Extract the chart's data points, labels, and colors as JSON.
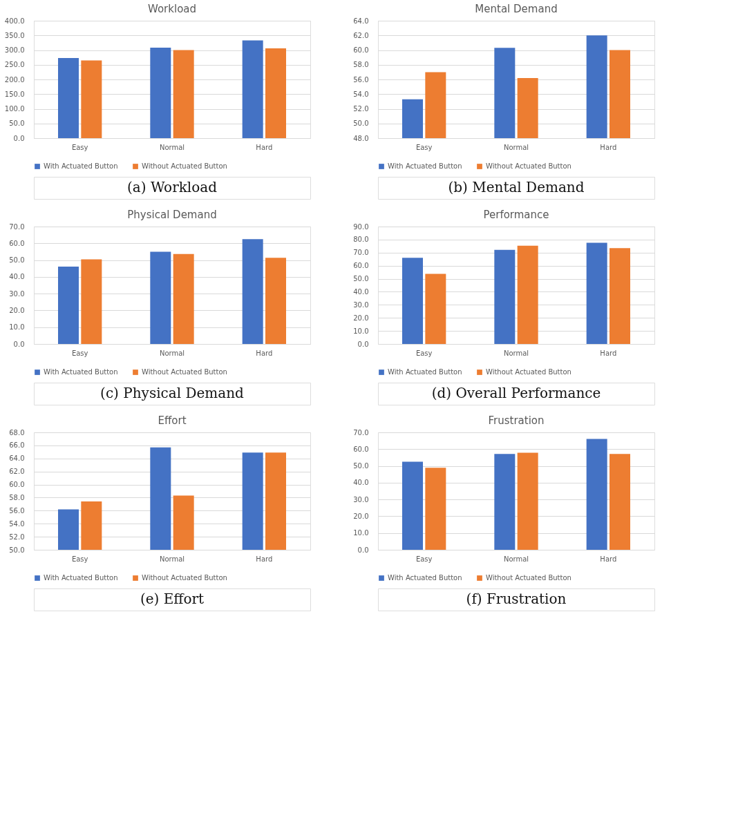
{
  "chart_data": [
    {
      "type": "bar",
      "title": "Workload",
      "categories": [
        "Easy",
        "Normal",
        "Hard"
      ],
      "series": [
        {
          "name": "With Actuated Button",
          "color": "#4472c4",
          "values": [
            273,
            308,
            333
          ]
        },
        {
          "name": "Without Actuated Button",
          "color": "#ed7d31",
          "values": [
            265,
            300,
            306
          ]
        }
      ],
      "ylim": [
        0,
        400
      ],
      "yticks": [
        {
          "value": 0,
          "label": "0.0"
        },
        {
          "value": 50,
          "label": "50.0"
        },
        {
          "value": 100,
          "label": "100.0"
        },
        {
          "value": 150,
          "label": "150.0"
        },
        {
          "value": 200,
          "label": "200.0"
        },
        {
          "value": 250,
          "label": "250.0"
        },
        {
          "value": 300,
          "label": "300.0"
        },
        {
          "value": 350,
          "label": "350.0"
        },
        {
          "value": 400,
          "label": "400.0"
        }
      ],
      "grid": "y",
      "legend": "bottom",
      "annotations": [
        "(a)  Workload"
      ]
    },
    {
      "type": "bar",
      "title": "Mental Demand",
      "categories": [
        "Easy",
        "Normal",
        "Hard"
      ],
      "series": [
        {
          "name": "With Actuated Button",
          "color": "#4472c4",
          "values": [
            53.3,
            60.3,
            62.0
          ]
        },
        {
          "name": "Without Actuated Button",
          "color": "#ed7d31",
          "values": [
            57.0,
            56.2,
            60.0
          ]
        }
      ],
      "ylim": [
        48,
        64
      ],
      "yticks": [
        {
          "value": 48,
          "label": "48.0"
        },
        {
          "value": 50,
          "label": "50.0"
        },
        {
          "value": 52,
          "label": "52.0"
        },
        {
          "value": 54,
          "label": "54.0"
        },
        {
          "value": 56,
          "label": "56.0"
        },
        {
          "value": 58,
          "label": "58.0"
        },
        {
          "value": 60,
          "label": "60.0"
        },
        {
          "value": 62,
          "label": "62.0"
        },
        {
          "value": 64,
          "label": "64.0"
        }
      ],
      "grid": "y",
      "legend": "bottom",
      "annotations": [
        "(b)  Mental Demand"
      ]
    },
    {
      "type": "bar",
      "title": "Physical Demand",
      "categories": [
        "Easy",
        "Normal",
        "Hard"
      ],
      "series": [
        {
          "name": "With Actuated Button",
          "color": "#4472c4",
          "values": [
            46.1,
            55.0,
            62.5
          ]
        },
        {
          "name": "Without Actuated Button",
          "color": "#ed7d31",
          "values": [
            50.4,
            53.6,
            51.4
          ]
        }
      ],
      "ylim": [
        0,
        70
      ],
      "yticks": [
        {
          "value": 0,
          "label": "0.0"
        },
        {
          "value": 10,
          "label": "10.0"
        },
        {
          "value": 20,
          "label": "20.0"
        },
        {
          "value": 30,
          "label": "30.0"
        },
        {
          "value": 40,
          "label": "40.0"
        },
        {
          "value": 50,
          "label": "50.0"
        },
        {
          "value": 60,
          "label": "60.0"
        },
        {
          "value": 70,
          "label": "70.0"
        }
      ],
      "grid": "y",
      "legend": "bottom",
      "annotations": [
        "(c)  Physical Demand"
      ]
    },
    {
      "type": "bar",
      "title": "Performance",
      "categories": [
        "Easy",
        "Normal",
        "Hard"
      ],
      "series": [
        {
          "name": "With Actuated Button",
          "color": "#4472c4",
          "values": [
            66.1,
            72.1,
            77.6
          ]
        },
        {
          "name": "Without Actuated Button",
          "color": "#ed7d31",
          "values": [
            53.7,
            75.3,
            73.5
          ]
        }
      ],
      "ylim": [
        0,
        90
      ],
      "yticks": [
        {
          "value": 0,
          "label": "0.0"
        },
        {
          "value": 10,
          "label": "10.0"
        },
        {
          "value": 20,
          "label": "20.0"
        },
        {
          "value": 30,
          "label": "30.0"
        },
        {
          "value": 40,
          "label": "40.0"
        },
        {
          "value": 50,
          "label": "50.0"
        },
        {
          "value": 60,
          "label": "60.0"
        },
        {
          "value": 70,
          "label": "70.0"
        },
        {
          "value": 80,
          "label": "80.0"
        },
        {
          "value": 90,
          "label": "90.0"
        }
      ],
      "grid": "y",
      "legend": "bottom",
      "annotations": [
        "(d)  Overall Performance"
      ]
    },
    {
      "type": "bar",
      "title": "Effort",
      "categories": [
        "Easy",
        "Normal",
        "Hard"
      ],
      "series": [
        {
          "name": "With Actuated Button",
          "color": "#4472c4",
          "values": [
            56.2,
            65.7,
            64.9
          ]
        },
        {
          "name": "Without Actuated Button",
          "color": "#ed7d31",
          "values": [
            57.4,
            58.3,
            64.9
          ]
        }
      ],
      "ylim": [
        50,
        68
      ],
      "yticks": [
        {
          "value": 50,
          "label": "50.0"
        },
        {
          "value": 52,
          "label": "52.0"
        },
        {
          "value": 54,
          "label": "54.0"
        },
        {
          "value": 56,
          "label": "56.0"
        },
        {
          "value": 58,
          "label": "58.0"
        },
        {
          "value": 60,
          "label": "60.0"
        },
        {
          "value": 62,
          "label": "62.0"
        },
        {
          "value": 64,
          "label": "64.0"
        },
        {
          "value": 66,
          "label": "66.0"
        },
        {
          "value": 68,
          "label": "68.0"
        }
      ],
      "grid": "y",
      "legend": "bottom",
      "annotations": [
        "(e)  Effort"
      ]
    },
    {
      "type": "bar",
      "title": "Frustration",
      "categories": [
        "Easy",
        "Normal",
        "Hard"
      ],
      "series": [
        {
          "name": "With Actuated Button",
          "color": "#4472c4",
          "values": [
            52.5,
            57.1,
            66.1
          ]
        },
        {
          "name": "Without Actuated Button",
          "color": "#ed7d31",
          "values": [
            48.9,
            57.9,
            57.1
          ]
        }
      ],
      "ylim": [
        0,
        70
      ],
      "yticks": [
        {
          "value": 0,
          "label": "0.0"
        },
        {
          "value": 10,
          "label": "10.0"
        },
        {
          "value": 20,
          "label": "20.0"
        },
        {
          "value": 30,
          "label": "30.0"
        },
        {
          "value": 40,
          "label": "40.0"
        },
        {
          "value": 50,
          "label": "50.0"
        },
        {
          "value": 60,
          "label": "60.0"
        },
        {
          "value": 70,
          "label": "70.0"
        }
      ],
      "grid": "y",
      "legend": "bottom",
      "annotations": [
        "(f)  Frustration"
      ]
    }
  ]
}
